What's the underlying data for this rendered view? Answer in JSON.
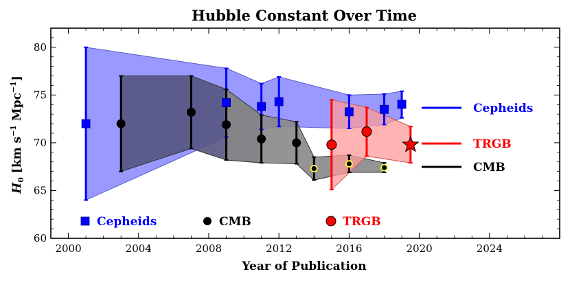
{
  "chart_data": {
    "type": "scatter",
    "title": "Hubble Constant Over Time",
    "xlabel": "Year of Publication",
    "ylabel_main": "H",
    "ylabel_sub": "0",
    "ylabel_unit_pre": " [km s",
    "ylabel_exp1": "−1",
    "ylabel_mid": " Mpc",
    "ylabel_exp2": "−1",
    "ylabel_close": "]",
    "xlim": [
      1999,
      2028
    ],
    "ylim": [
      60,
      82
    ],
    "xticks": [
      2000,
      2004,
      2008,
      2012,
      2016,
      2020,
      2024
    ],
    "yticks": [
      60,
      65,
      70,
      75,
      80
    ],
    "colors": {
      "cepheids": "#0000ff",
      "cepheids_fill": "#9999ff",
      "trgb": "#ff0000",
      "trgb_fill": "#ff9999",
      "cmb": "#000000",
      "cmb_fill_early": "#555580",
      "cmb_fill": "#888888"
    },
    "series": [
      {
        "name": "Cepheids",
        "marker": "square",
        "points": [
          {
            "x": 2001,
            "y": 72.0,
            "lo": 64.0,
            "hi": 80.0
          },
          {
            "x": 2009,
            "y": 74.2,
            "lo": 70.6,
            "hi": 77.8
          },
          {
            "x": 2011,
            "y": 73.8,
            "lo": 71.4,
            "hi": 76.2
          },
          {
            "x": 2012,
            "y": 74.3,
            "lo": 71.7,
            "hi": 76.9
          },
          {
            "x": 2016,
            "y": 73.24,
            "lo": 71.5,
            "hi": 75.0
          },
          {
            "x": 2018,
            "y": 73.5,
            "lo": 71.9,
            "hi": 75.1
          },
          {
            "x": 2019,
            "y": 74.03,
            "lo": 72.6,
            "hi": 75.4
          }
        ]
      },
      {
        "name": "CMB",
        "marker": "circle",
        "points": [
          {
            "x": 2003,
            "y": 72.0,
            "lo": 67.0,
            "hi": 77.0
          },
          {
            "x": 2007,
            "y": 73.2,
            "lo": 69.4,
            "hi": 77.0
          },
          {
            "x": 2009,
            "y": 71.9,
            "lo": 68.2,
            "hi": 75.6
          },
          {
            "x": 2011,
            "y": 70.4,
            "lo": 67.9,
            "hi": 72.9
          },
          {
            "x": 2013,
            "y": 70.0,
            "lo": 67.8,
            "hi": 72.2
          },
          {
            "x": 2014,
            "y": 67.3,
            "lo": 66.1,
            "hi": 68.5
          },
          {
            "x": 2016,
            "y": 67.8,
            "lo": 66.9,
            "hi": 68.7
          },
          {
            "x": 2018,
            "y": 67.4,
            "lo": 66.9,
            "hi": 67.9
          }
        ]
      },
      {
        "name": "TRGB",
        "marker": "circle",
        "points": [
          {
            "x": 2015,
            "y": 69.8,
            "lo": 65.1,
            "hi": 74.5
          },
          {
            "x": 2017,
            "y": 71.17,
            "lo": 68.6,
            "hi": 73.7
          },
          {
            "x": 2019.5,
            "y": 69.8,
            "lo": 67.9,
            "hi": 71.7,
            "marker": "star"
          }
        ]
      }
    ],
    "legend_right": [
      {
        "label": "Cepheids",
        "color": "#0000ff"
      },
      {
        "label": "TRGB",
        "color": "#ff0000"
      },
      {
        "label": "CMB",
        "color": "#000000"
      }
    ],
    "legend_bottom": [
      {
        "label": "Cepheids",
        "color": "#0000ff",
        "marker": "square",
        "text_color": "#0000ff"
      },
      {
        "label": "CMB",
        "color": "#000000",
        "marker": "circle",
        "text_color": "#000000"
      },
      {
        "label": "TRGB",
        "color": "#ff0000",
        "marker": "circle",
        "text_color": "#ff0000"
      }
    ]
  }
}
